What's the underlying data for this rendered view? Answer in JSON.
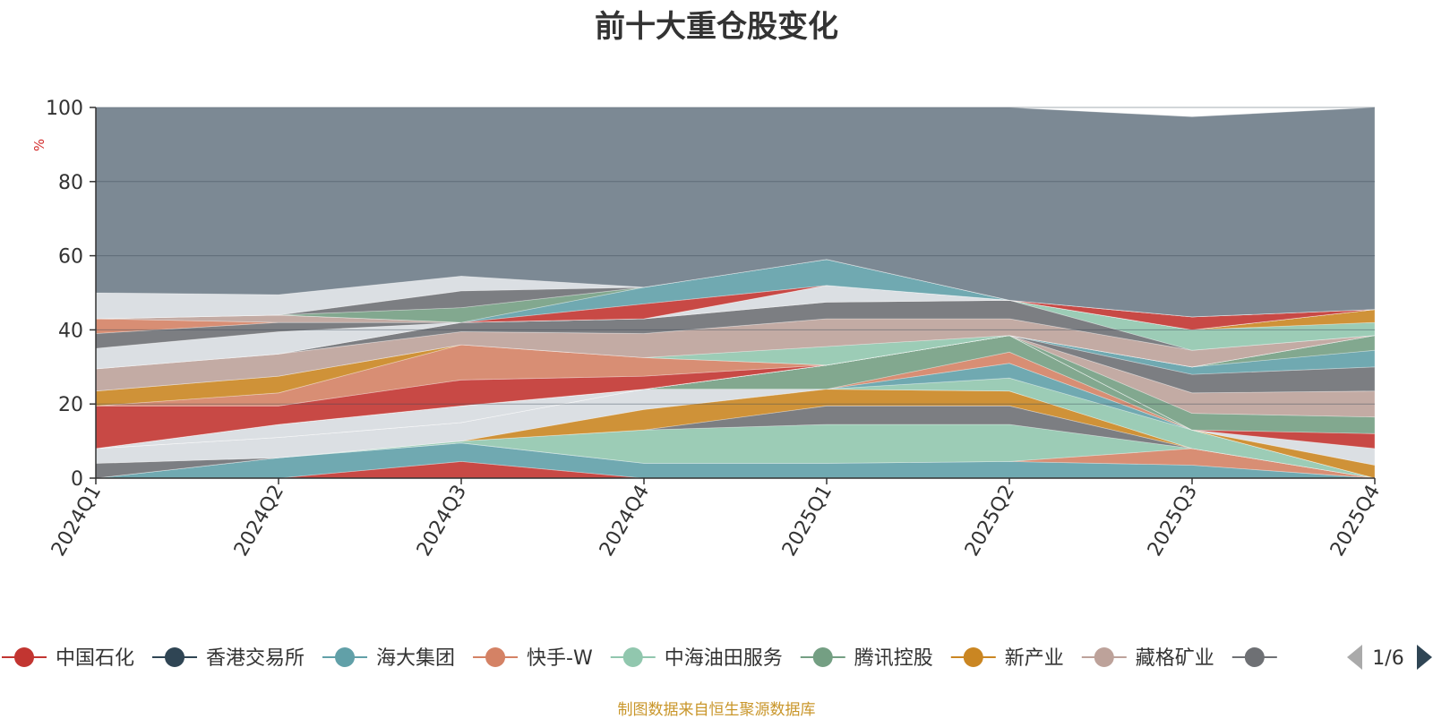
{
  "chart_data": {
    "type": "area",
    "title": "前十大重仓股变化",
    "ylabel": "%",
    "ylim": [
      0,
      100
    ],
    "yticks": [
      0,
      20,
      40,
      60,
      80,
      100
    ],
    "categories": [
      "2024Q1",
      "2024Q2",
      "2024Q3",
      "2024Q4",
      "2025Q1",
      "2025Q2",
      "2025Q3",
      "2025Q4"
    ],
    "legend": {
      "placement": "bottom",
      "page": "1/6",
      "items": [
        {
          "name": "中国石化",
          "color": "#c23531"
        },
        {
          "name": "香港交易所",
          "color": "#2f4554"
        },
        {
          "name": "海大集团",
          "color": "#61a0a8"
        },
        {
          "name": "快手-W",
          "color": "#d48265"
        },
        {
          "name": "中海油田服务",
          "color": "#91c7ae"
        },
        {
          "name": "腾讯控股",
          "color": "#749f83"
        },
        {
          "name": "新产业",
          "color": "#ca8622"
        },
        {
          "name": "藏格矿业",
          "color": "#bda29a"
        },
        {
          "name": "",
          "color": "#6e7074"
        }
      ]
    },
    "bands": [
      {
        "color": "#c23531",
        "lower": [
          0,
          0,
          0,
          0,
          0,
          0,
          0,
          0
        ],
        "upper": [
          0,
          0,
          4.5,
          0,
          0,
          0,
          0,
          0
        ]
      },
      {
        "color": "#61a0a8",
        "lower": [
          0,
          0,
          4.5,
          0,
          0,
          0,
          0,
          0
        ],
        "upper": [
          0,
          5.5,
          9.5,
          4,
          4,
          4.5,
          3.5,
          0
        ]
      },
      {
        "color": "#d48265",
        "lower": [
          0,
          5.5,
          9.5,
          4,
          4,
          4.5,
          3.5,
          0
        ],
        "upper": [
          0,
          5.5,
          9.5,
          4,
          4,
          4.5,
          8,
          0
        ]
      },
      {
        "color": "#91c7ae",
        "lower": [
          0,
          5.5,
          9.5,
          4,
          4,
          4.5,
          8,
          0
        ],
        "upper": [
          0,
          5.5,
          10,
          13,
          14.5,
          14.5,
          8,
          0
        ]
      },
      {
        "color": "#6e7074",
        "lower": [
          0,
          5.5,
          10,
          13,
          14.5,
          14.5,
          8,
          0
        ],
        "upper": [
          4,
          5.5,
          10,
          13,
          19.5,
          19.5,
          8,
          0
        ]
      },
      {
        "color": "#ca8622",
        "lower": [
          4,
          5.5,
          10,
          13,
          19.5,
          19.5,
          8,
          0
        ],
        "upper": [
          4,
          5.5,
          10,
          18.5,
          24,
          23.5,
          8,
          0
        ]
      },
      {
        "color": "#d7dbe0",
        "lower": [
          4,
          5.5,
          10,
          18.5,
          24,
          23.5,
          8,
          0
        ],
        "upper": [
          8,
          11,
          15,
          24,
          24,
          23.5,
          8,
          0
        ]
      },
      {
        "color": "#91c7ae",
        "lower": [
          8,
          11,
          15,
          24,
          24,
          23.5,
          8,
          0
        ],
        "upper": [
          8,
          11,
          15,
          24,
          24,
          27,
          13,
          0
        ]
      },
      {
        "color": "#61a0a8",
        "lower": [
          8,
          11,
          15,
          24,
          24,
          27,
          13,
          0
        ],
        "upper": [
          8,
          11,
          15,
          24,
          24,
          31,
          13,
          0
        ]
      },
      {
        "color": "#d48265",
        "lower": [
          8,
          11,
          15,
          24,
          24,
          31,
          13,
          0
        ],
        "upper": [
          8,
          11,
          15,
          24,
          24,
          34,
          13,
          0
        ]
      },
      {
        "color": "#749f83",
        "lower": [
          8,
          11,
          15,
          24,
          24,
          34,
          13,
          0
        ],
        "upper": [
          8,
          11,
          15,
          24,
          30.5,
          38.5,
          13,
          0
        ]
      },
      {
        "color": "#d7dbe0",
        "lower": [
          8,
          11,
          15,
          24,
          30.5,
          38.5,
          13,
          0
        ],
        "upper": [
          8,
          14.5,
          19.5,
          24,
          30.5,
          38.5,
          13,
          0
        ]
      },
      {
        "color": "#ca8622",
        "lower": [
          8,
          14.5,
          19.5,
          24,
          30.5,
          38.5,
          13,
          0
        ],
        "upper": [
          8,
          14.5,
          19.5,
          24,
          30.5,
          38.5,
          13,
          3.5
        ]
      },
      {
        "color": "#d7dbe0",
        "lower": [
          8,
          14.5,
          19.5,
          24,
          30.5,
          38.5,
          13,
          3.5
        ],
        "upper": [
          8,
          14.5,
          19.5,
          24,
          30.5,
          38.5,
          13,
          8
        ]
      },
      {
        "color": "#c23531",
        "lower": [
          8,
          14.5,
          19.5,
          24,
          30.5,
          38.5,
          13,
          8
        ],
        "upper": [
          8,
          14.5,
          19.5,
          24,
          30.5,
          38.5,
          13,
          12
        ]
      },
      {
        "color": "#749f83",
        "lower": [
          8,
          14.5,
          19.5,
          24,
          30.5,
          38.5,
          13,
          12
        ],
        "upper": [
          8,
          14.5,
          19.5,
          24,
          30.5,
          38.5,
          17.5,
          16.5
        ]
      },
      {
        "color": "#bda29a",
        "lower": [
          8,
          14.5,
          19.5,
          24,
          30.5,
          38.5,
          17.5,
          16.5
        ],
        "upper": [
          8,
          14.5,
          19.5,
          24,
          30.5,
          38.5,
          23,
          23.5
        ]
      },
      {
        "color": "#6e7074",
        "lower": [
          8,
          14.5,
          19.5,
          24,
          30.5,
          38.5,
          23,
          23.5
        ],
        "upper": [
          8,
          14.5,
          19.5,
          24,
          30.5,
          38.5,
          28,
          30
        ]
      },
      {
        "color": "#61a0a8",
        "lower": [
          8,
          14.5,
          19.5,
          24,
          30.5,
          38.5,
          28,
          30
        ],
        "upper": [
          8,
          14.5,
          19.5,
          24,
          30.5,
          38.5,
          30,
          34.5
        ]
      },
      {
        "color": "#749f83",
        "lower": [
          8,
          14.5,
          19.5,
          24,
          30.5,
          38.5,
          30,
          34.5
        ],
        "upper": [
          8,
          14.5,
          19.5,
          24,
          30.5,
          38.5,
          30,
          38.5
        ]
      },
      {
        "color": "#c23531",
        "lower": [
          8,
          14.5,
          19.5,
          24,
          30.5,
          38.5,
          30,
          38.5
        ],
        "upper": [
          19.5,
          19.5,
          26.5,
          27.5,
          30.5,
          38.5,
          30,
          38.5
        ]
      },
      {
        "color": "#d48265",
        "lower": [
          19.5,
          19.5,
          26.5,
          27.5,
          30.5,
          38.5,
          30,
          38.5
        ],
        "upper": [
          19.5,
          23,
          36,
          32.5,
          30.5,
          38.5,
          30,
          38.5
        ]
      },
      {
        "color": "#ca8622",
        "lower": [
          19.5,
          23,
          36,
          32.5,
          30.5,
          38.5,
          30,
          38.5
        ],
        "upper": [
          23.5,
          27.5,
          36,
          32.5,
          30.5,
          38.5,
          30,
          38.5
        ]
      },
      {
        "color": "#91c7ae",
        "lower": [
          23.5,
          27.5,
          36,
          32.5,
          30.5,
          38.5,
          30,
          38.5
        ],
        "upper": [
          23.5,
          27.5,
          36,
          32.5,
          35.5,
          38.5,
          30,
          38.5
        ]
      },
      {
        "color": "#bda29a",
        "lower": [
          23.5,
          27.5,
          36,
          32.5,
          35.5,
          38.5,
          30,
          38.5
        ],
        "upper": [
          29.5,
          33.5,
          39.5,
          39,
          43,
          43,
          34.5,
          38.5
        ]
      },
      {
        "color": "#6e7074",
        "lower": [
          29.5,
          33.5,
          39.5,
          39,
          43,
          43,
          34.5,
          38.5
        ],
        "upper": [
          29.5,
          33.5,
          42,
          43,
          47.5,
          48,
          34.5,
          38.5
        ]
      },
      {
        "color": "#91c7ae",
        "lower": [
          29.5,
          33.5,
          42,
          43,
          47.5,
          48,
          34.5,
          38.5
        ],
        "upper": [
          29.5,
          33.5,
          42,
          43,
          47.5,
          48,
          40,
          42
        ]
      },
      {
        "color": "#ca8622",
        "lower": [
          29.5,
          33.5,
          42,
          43,
          47.5,
          48,
          40,
          42
        ],
        "upper": [
          29.5,
          33.5,
          42,
          43,
          47.5,
          48,
          40,
          45.5
        ]
      },
      {
        "color": "#d7dbe0",
        "lower": [
          29.5,
          33.5,
          42,
          43,
          47.5,
          48,
          40,
          45.5
        ],
        "upper": [
          35,
          39.5,
          42,
          43,
          52,
          48,
          40,
          45.5
        ]
      },
      {
        "color": "#6e7074",
        "lower": [
          35,
          39.5,
          42,
          43,
          52,
          48,
          40,
          45.5
        ],
        "upper": [
          39,
          42,
          42,
          43,
          52,
          48,
          40,
          45.5
        ]
      },
      {
        "color": "#d48265",
        "lower": [
          39,
          42,
          42,
          43,
          52,
          48,
          40,
          45.5
        ],
        "upper": [
          43,
          42,
          42,
          43,
          52,
          48,
          40,
          45.5
        ]
      },
      {
        "color": "#bda29a",
        "lower": [
          43,
          42,
          42,
          43,
          52,
          48,
          40,
          45.5
        ],
        "upper": [
          43,
          44,
          42,
          43,
          52,
          48,
          40,
          45.5
        ]
      },
      {
        "color": "#c23531",
        "lower": [
          43,
          44,
          42,
          43,
          52,
          48,
          40,
          45.5
        ],
        "upper": [
          43,
          44,
          42,
          47,
          52,
          48,
          43.5,
          45.5
        ]
      },
      {
        "color": "#61a0a8",
        "lower": [
          43,
          44,
          42,
          47,
          52,
          48,
          43.5,
          45.5
        ],
        "upper": [
          43,
          44,
          42,
          51.5,
          59,
          48,
          43.5,
          45.5
        ]
      },
      {
        "color": "#749f83",
        "lower": [
          43,
          44,
          42,
          51.5,
          59,
          48,
          43.5,
          45.5
        ],
        "upper": [
          43,
          44,
          46,
          51.5,
          59,
          48,
          43.5,
          45.5
        ]
      },
      {
        "color": "#6e7074",
        "lower": [
          43,
          44,
          46,
          51.5,
          59,
          48,
          43.5,
          45.5
        ],
        "upper": [
          43,
          44,
          50.5,
          51.5,
          59,
          48,
          43.5,
          45.5
        ]
      },
      {
        "color": "#d7dbe0",
        "lower": [
          43,
          44,
          50.5,
          51.5,
          59,
          48,
          43.5,
          45.5
        ],
        "upper": [
          50,
          49.5,
          54.5,
          51.5,
          59,
          48,
          43.5,
          45.5
        ]
      },
      {
        "color": "#6e7c88",
        "lower": [
          50,
          49.5,
          54.5,
          51.5,
          59,
          48,
          43.5,
          45.5
        ],
        "upper": [
          100,
          100,
          100,
          100,
          100,
          100,
          97.5,
          100
        ]
      }
    ]
  },
  "source_note": "制图数据来自恒生聚源数据库"
}
